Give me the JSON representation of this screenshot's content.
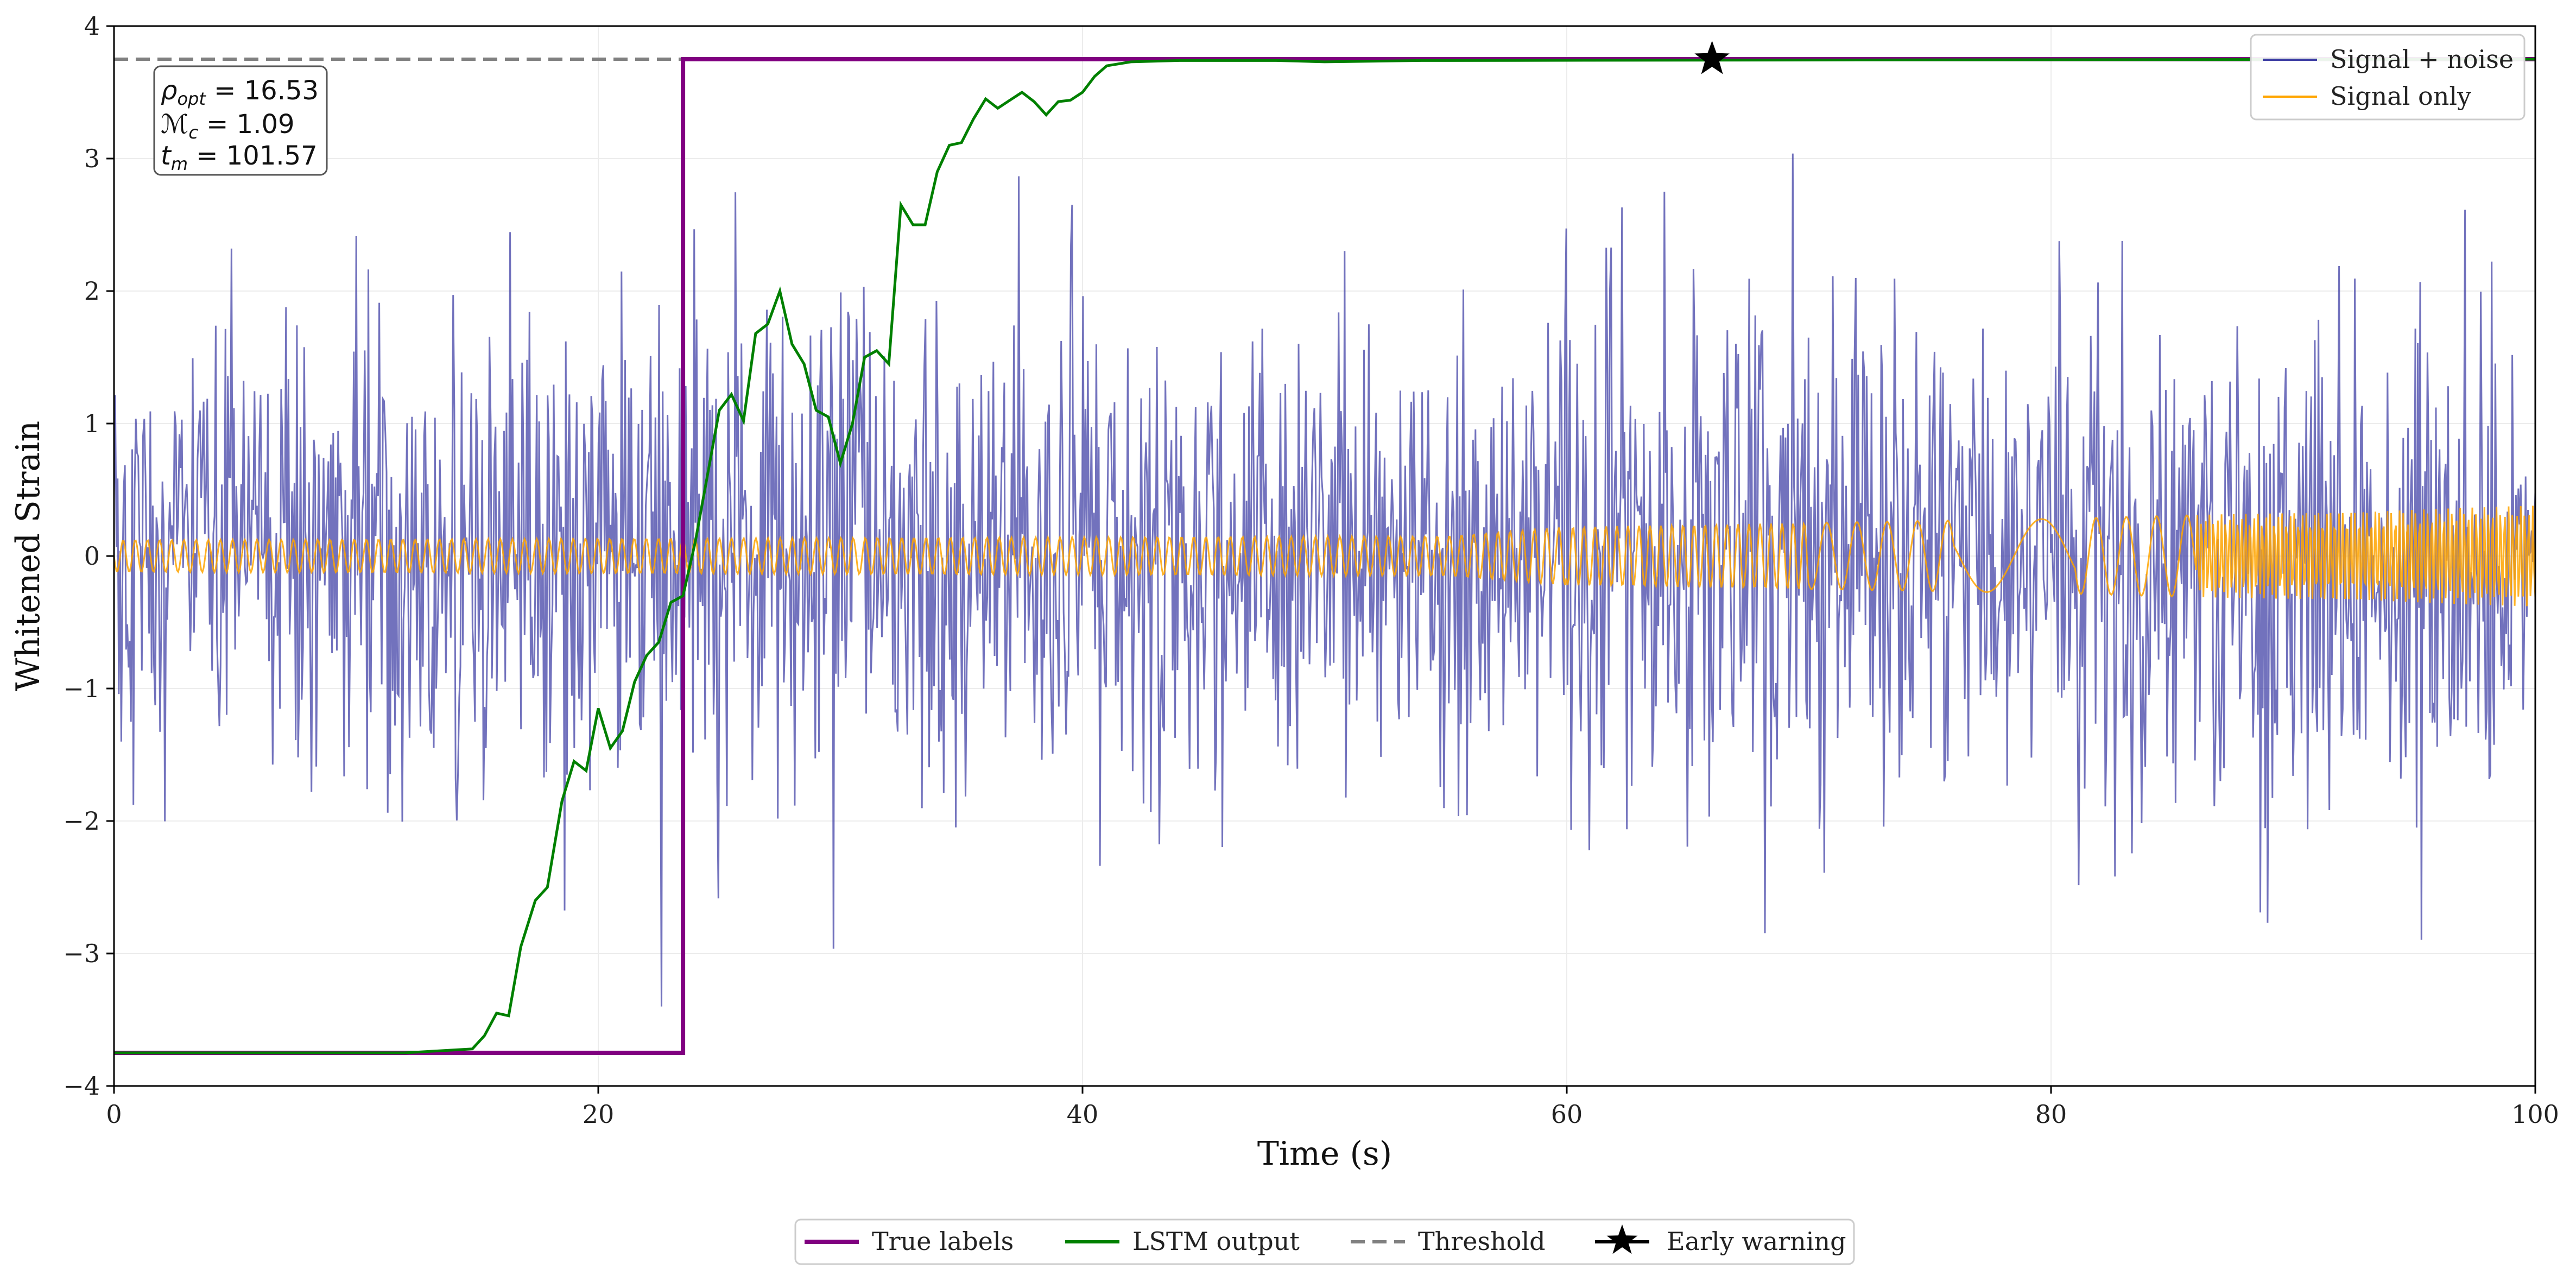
{
  "chart_data": {
    "type": "line",
    "xlabel": "Time (s)",
    "ylabel": "Whitened Strain",
    "xlim": [
      0,
      100
    ],
    "ylim": [
      -4,
      4
    ],
    "x_ticks": [
      0,
      20,
      40,
      60,
      80,
      100
    ],
    "y_ticks": [
      -4,
      -3,
      -2,
      -1,
      0,
      1,
      2,
      3,
      4
    ],
    "x_tick_labels": [
      "0",
      "20",
      "40",
      "60",
      "80",
      "100"
    ],
    "y_tick_labels": [
      "−4",
      "−3",
      "−2",
      "−1",
      "0",
      "1",
      "2",
      "3",
      "4"
    ],
    "grid": true,
    "threshold": 3.75,
    "series": [
      {
        "name": "True labels",
        "color": "#800080",
        "points": [
          [
            0,
            -3.75
          ],
          [
            23.5,
            -3.75
          ],
          [
            23.5,
            3.75
          ],
          [
            100,
            3.75
          ]
        ]
      },
      {
        "name": "LSTM output",
        "color": "#008000",
        "points": [
          [
            0,
            -3.75
          ],
          [
            12,
            -3.75
          ],
          [
            14.8,
            -3.72
          ],
          [
            15.3,
            -3.62
          ],
          [
            15.8,
            -3.45
          ],
          [
            16.3,
            -3.47
          ],
          [
            16.8,
            -2.95
          ],
          [
            17.4,
            -2.6
          ],
          [
            17.9,
            -2.5
          ],
          [
            18.5,
            -1.85
          ],
          [
            19,
            -1.55
          ],
          [
            19.5,
            -1.62
          ],
          [
            20,
            -1.15
          ],
          [
            20.5,
            -1.45
          ],
          [
            21,
            -1.32
          ],
          [
            21.5,
            -0.95
          ],
          [
            22,
            -0.75
          ],
          [
            22.5,
            -0.65
          ],
          [
            23,
            -0.35
          ],
          [
            23.5,
            -0.3
          ],
          [
            24,
            0.1
          ],
          [
            24.5,
            0.6
          ],
          [
            25,
            1.1
          ],
          [
            25.5,
            1.22
          ],
          [
            26,
            1.02
          ],
          [
            26.5,
            1.68
          ],
          [
            27,
            1.75
          ],
          [
            27.5,
            2.0
          ],
          [
            28,
            1.6
          ],
          [
            28.5,
            1.45
          ],
          [
            29,
            1.1
          ],
          [
            29.5,
            1.05
          ],
          [
            30,
            0.7
          ],
          [
            30.5,
            1.0
          ],
          [
            31,
            1.5
          ],
          [
            31.5,
            1.55
          ],
          [
            32,
            1.45
          ],
          [
            32.5,
            2.65
          ],
          [
            33,
            2.5
          ],
          [
            33.5,
            2.5
          ],
          [
            34,
            2.9
          ],
          [
            34.5,
            3.1
          ],
          [
            35,
            3.12
          ],
          [
            35.5,
            3.3
          ],
          [
            36,
            3.45
          ],
          [
            36.5,
            3.38
          ],
          [
            37,
            3.44
          ],
          [
            37.5,
            3.5
          ],
          [
            38,
            3.43
          ],
          [
            38.5,
            3.33
          ],
          [
            39,
            3.43
          ],
          [
            39.5,
            3.44
          ],
          [
            40,
            3.5
          ],
          [
            40.5,
            3.62
          ],
          [
            41,
            3.7
          ],
          [
            42,
            3.73
          ],
          [
            44,
            3.74
          ],
          [
            48,
            3.74
          ],
          [
            50,
            3.73
          ],
          [
            54,
            3.74
          ],
          [
            100,
            3.75
          ]
        ]
      },
      {
        "name": "Signal + noise",
        "color": "#3b3ba3",
        "sample_count": 2000,
        "noise_std": 0.9,
        "range": [
          -3.4,
          3.7
        ]
      },
      {
        "name": "Signal only",
        "color": "#ffa500",
        "amplitude_profile": [
          [
            0,
            0.12
          ],
          [
            55,
            0.15
          ],
          [
            60,
            0.22
          ],
          [
            80,
            0.28
          ],
          [
            100,
            0.38
          ]
        ],
        "chirp_gap": [
          76,
          81
        ]
      }
    ],
    "early_warning": {
      "label": "Early warning",
      "x": 66,
      "y": 3.75
    },
    "legend_upper": [
      {
        "label": "Signal + noise",
        "color": "#3b3ba3"
      },
      {
        "label": "Signal only",
        "color": "#ffa500"
      }
    ],
    "legend_lower": [
      {
        "label": "True labels",
        "color": "#800080",
        "style": "solid"
      },
      {
        "label": "LSTM output",
        "color": "#008000",
        "style": "solid"
      },
      {
        "label": "Threshold",
        "color": "#808080",
        "style": "dashed"
      },
      {
        "label": "Early warning",
        "color": "#000000",
        "style": "star"
      }
    ],
    "info_box": {
      "rho_symbol": "ρ",
      "rho_sub": "opt",
      "rho_value": "16.53",
      "mc_symbol": "ℳ",
      "mc_sub": "c",
      "mc_value": "1.09",
      "tm_symbol": "t",
      "tm_sub": "m",
      "tm_value": "101.57"
    }
  }
}
